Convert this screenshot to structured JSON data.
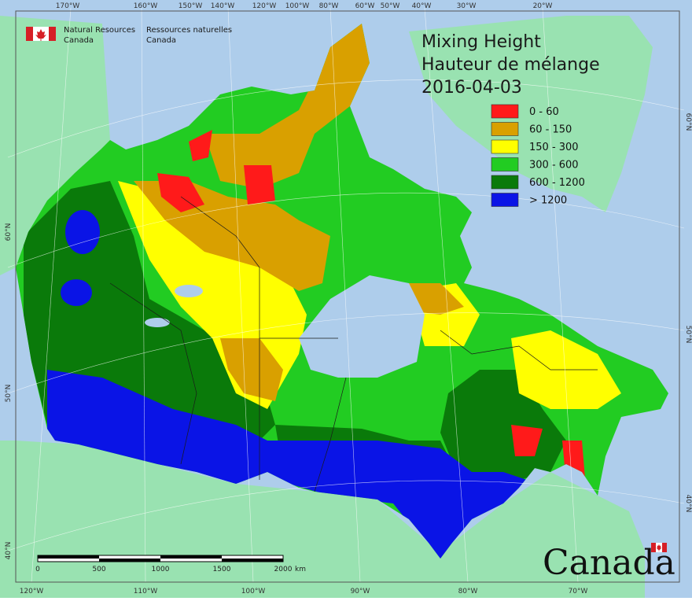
{
  "header": {
    "agency_en_line1": "Natural Resources",
    "agency_en_line2": "Canada",
    "agency_fr_line1": "Ressources naturelles",
    "agency_fr_line2": "Canada"
  },
  "title": {
    "line1": "Mixing Height",
    "line2": "Hauteur de mélange",
    "date": "2016-04-03"
  },
  "legend": [
    {
      "label": "0 - 60",
      "color": "#ff1a1a"
    },
    {
      "label": "60 - 150",
      "color": "#d9a000"
    },
    {
      "label": "150 - 300",
      "color": "#ffff00"
    },
    {
      "label": "300 - 600",
      "color": "#22cc22"
    },
    {
      "label": "600 - 1200",
      "color": "#0a7a0a"
    },
    {
      "label": "> 1200",
      "color": "#0a14e6"
    }
  ],
  "graticule": {
    "top_longitudes": [
      "170°W",
      "160°W",
      "150°W",
      "140°W",
      "120°W",
      "100°W",
      "80°W",
      "60°W",
      "50°W",
      "40°W",
      "30°W",
      "20°W"
    ],
    "bottom_longitudes": [
      "120°W",
      "110°W",
      "100°W",
      "90°W",
      "80°W",
      "70°W"
    ],
    "left_latitudes": [
      "60°N",
      "50°N",
      "40°N"
    ],
    "right_latitudes": [
      "60°N",
      "50°N",
      "40°N"
    ],
    "scale_labels": [
      "0",
      "500",
      "1000",
      "1500",
      "2000",
      "km"
    ]
  },
  "wordmark": "Canada",
  "colors": {
    "ocean": "#aecdeb",
    "foreign_land": "#99e2b1",
    "lake": "#aecdeb"
  }
}
